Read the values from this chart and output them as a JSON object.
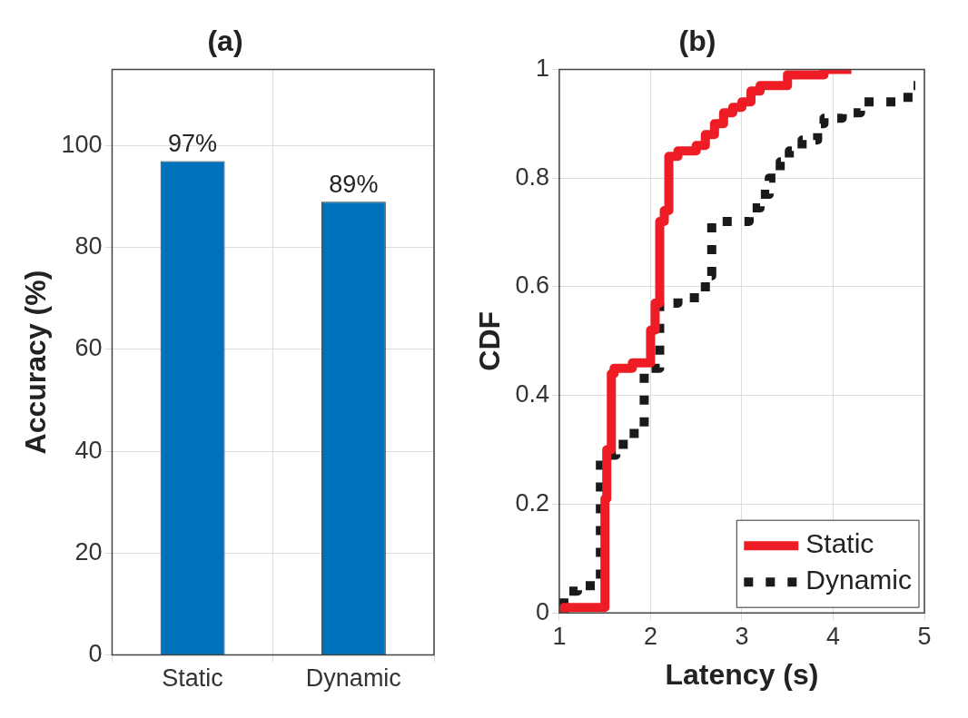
{
  "chart_data": [
    {
      "type": "bar",
      "title": "(a)",
      "ylabel": "Accuracy (%)",
      "categories": [
        "Static",
        "Dynamic"
      ],
      "values": [
        97,
        89
      ],
      "value_labels": [
        "97%",
        "89%"
      ],
      "color": "#0072bd",
      "ylim": [
        0,
        115
      ],
      "yticks": [
        0,
        20,
        40,
        60,
        80,
        100
      ],
      "grid": true
    },
    {
      "type": "step",
      "title": "(b)",
      "xlabel": "Latency (s)",
      "ylabel": "CDF",
      "xlim": [
        1,
        5
      ],
      "xticks": [
        1,
        2,
        3,
        4,
        5
      ],
      "ylim": [
        0,
        1
      ],
      "yticks": [
        0,
        0.2,
        0.4,
        0.6,
        0.8,
        1
      ],
      "grid": true,
      "legend": "bottom right",
      "series": [
        {
          "name": "Static",
          "color": "#ee1c25",
          "line_style": "solid",
          "x": [
            1.05,
            1.5,
            1.52,
            1.57,
            1.6,
            1.8,
            2.0,
            2.05,
            2.1,
            2.15,
            2.2,
            2.3,
            2.5,
            2.6,
            2.7,
            2.8,
            2.9,
            3.0,
            3.1,
            3.2,
            3.3,
            3.5,
            3.7,
            3.9,
            4.2
          ],
          "values": [
            0,
            0.01,
            0.21,
            0.3,
            0.44,
            0.45,
            0.46,
            0.52,
            0.57,
            0.72,
            0.74,
            0.84,
            0.85,
            0.86,
            0.88,
            0.9,
            0.92,
            0.93,
            0.94,
            0.96,
            0.97,
            0.97,
            0.99,
            0.99,
            1.0
          ]
        },
        {
          "name": "Dynamic",
          "color": "#1a1a1a",
          "line_style": "dotted",
          "x": [
            1.05,
            1.2,
            1.45,
            1.62,
            1.75,
            1.93,
            2.1,
            2.3,
            2.6,
            2.67,
            2.8,
            3.08,
            3.2,
            3.3,
            3.42,
            3.52,
            3.66,
            3.83,
            3.9,
            4.1,
            4.3,
            4.54,
            4.82,
            4.9
          ],
          "values": [
            0.01,
            0.04,
            0.05,
            0.29,
            0.31,
            0.33,
            0.45,
            0.57,
            0.58,
            0.62,
            0.72,
            0.72,
            0.745,
            0.77,
            0.8,
            0.83,
            0.85,
            0.87,
            0.9,
            0.91,
            0.92,
            0.94,
            0.94,
            0.97
          ]
        }
      ]
    }
  ]
}
